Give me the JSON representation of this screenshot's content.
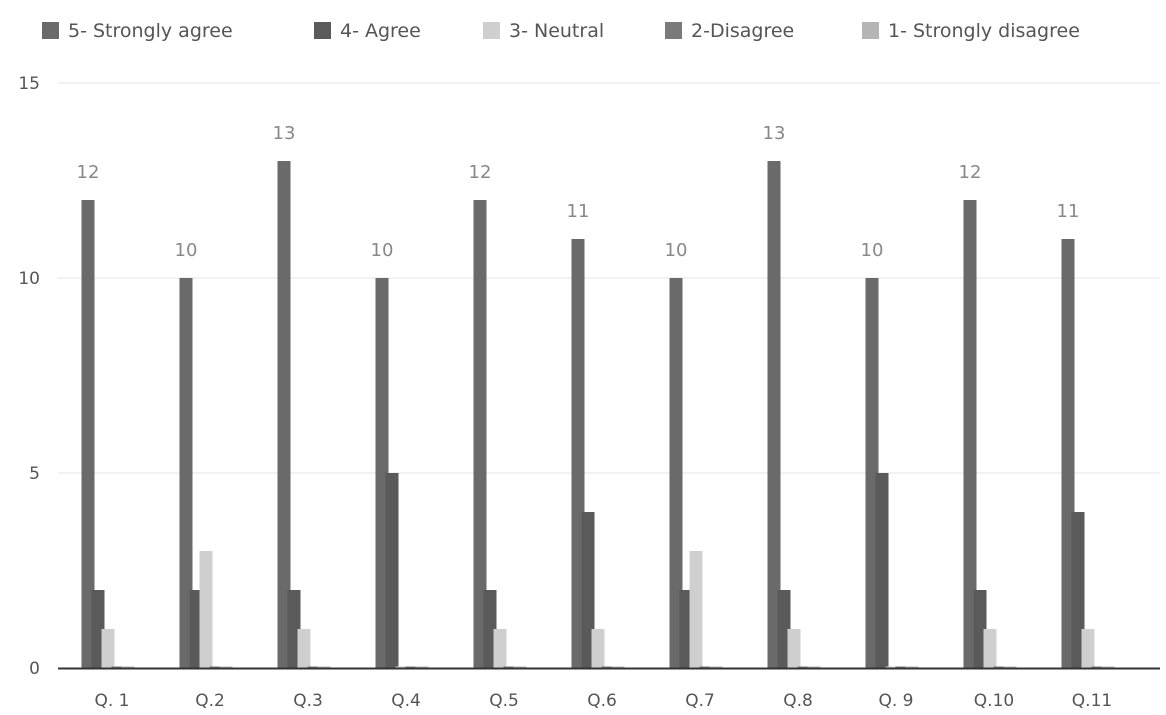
{
  "chart_data": {
    "type": "bar",
    "title": "",
    "xlabel": "",
    "ylabel": "",
    "ylim": [
      0,
      15
    ],
    "yticks": [
      0,
      5,
      10,
      15
    ],
    "grid": true,
    "legend_position": "top",
    "categories": [
      "Q. 1",
      "Q.2",
      "Q.3",
      "Q.4",
      "Q.5",
      "Q.6",
      "Q.7",
      "Q.8",
      "Q. 9",
      "Q.10",
      "Q.11"
    ],
    "series": [
      {
        "name": "5- Strongly agree",
        "color": "#6a6a6a",
        "values": [
          12,
          10,
          13,
          10,
          12,
          11,
          10,
          13,
          10,
          12,
          11
        ]
      },
      {
        "name": "4- Agree",
        "color": "#5a5a5a",
        "values": [
          2,
          2,
          2,
          5,
          2,
          4,
          2,
          2,
          5,
          2,
          4
        ]
      },
      {
        "name": "3- Neutral",
        "color": "#cfcfcf",
        "values": [
          1,
          3,
          1,
          0,
          1,
          1,
          3,
          1,
          0,
          1,
          1
        ]
      },
      {
        "name": "2-Disagree",
        "color": "#7a7a7a",
        "values": [
          0,
          0,
          0,
          0,
          0,
          0,
          0,
          0,
          0,
          0,
          0
        ]
      },
      {
        "name": "1- Strongly disagree",
        "color": "#b5b5b5",
        "values": [
          0,
          0,
          0,
          0,
          0,
          0,
          0,
          0,
          0,
          0,
          0
        ]
      }
    ],
    "data_labels": {
      "series_index": 0,
      "values": [
        "12",
        "10",
        "13",
        "10",
        "12",
        "11",
        "10",
        "13",
        "10",
        "12",
        "11"
      ]
    }
  }
}
